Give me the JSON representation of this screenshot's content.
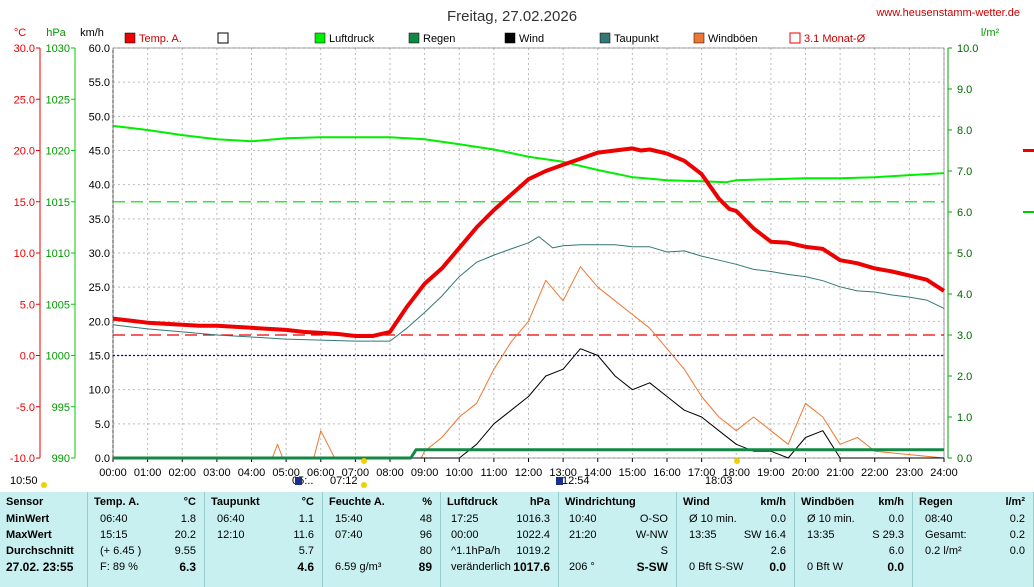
{
  "header": {
    "title": "Freitag, 27.02.2026",
    "website": "www.heusenstamm-wetter.de"
  },
  "units": {
    "temp": "°C",
    "pressure": "hPa",
    "wind": "km/h",
    "rain": "l/m²"
  },
  "legend": [
    {
      "label": "Temp. A.",
      "color": "#ee0000",
      "style": "fill"
    },
    {
      "label": "",
      "color": "#ffffff",
      "style": "box"
    },
    {
      "label": "Luftdruck",
      "color": "#00ee00",
      "style": "fill"
    },
    {
      "label": "Regen",
      "color": "#118844",
      "style": "fill"
    },
    {
      "label": "Wind",
      "color": "#000000",
      "style": "fill"
    },
    {
      "label": "Taupunkt",
      "color": "#337777",
      "style": "fill"
    },
    {
      "label": "Windböen",
      "color": "#ee7733",
      "style": "fill"
    },
    {
      "label": "3.1 Monat-Ø",
      "color": "#ee0000",
      "style": "outline"
    }
  ],
  "axes": {
    "temp_ticks": [
      "30.0",
      "25.0",
      "20.0",
      "15.0",
      "10.0",
      "5.0",
      "0.0",
      "-5.0",
      "-10.0"
    ],
    "pressure_ticks": [
      "1030",
      "1025",
      "1020",
      "1015",
      "1010",
      "1005",
      "1000",
      "995",
      "990"
    ],
    "wind_ticks": [
      "60.0",
      "55.0",
      "50.0",
      "45.0",
      "40.0",
      "35.0",
      "30.0",
      "25.0",
      "20.0",
      "15.0",
      "10.0",
      "5.0",
      "0.0"
    ],
    "rain_ticks": [
      "10.0",
      "9.0",
      "8.0",
      "7.0",
      "6.0",
      "5.0",
      "4.0",
      "3.0",
      "2.0",
      "1.0",
      "0.0"
    ],
    "time_ticks": [
      "00:00",
      "01:00",
      "02:00",
      "03:00",
      "04:00",
      "05:00",
      "06:00",
      "07:00",
      "08:00",
      "09:00",
      "10:00",
      "11:00",
      "12:00",
      "13:00",
      "14:00",
      "15:00",
      "16:00",
      "17:00",
      "18:00",
      "19:00",
      "20:00",
      "21:00",
      "22:00",
      "23:00",
      "24:00"
    ]
  },
  "sun_markers": [
    "10:50",
    "05:..",
    "07:12",
    "12:54",
    "18:03"
  ],
  "chart_data": {
    "type": "line",
    "x_unit": "hour of day",
    "reference_lines": [
      {
        "name": "3.1 Monat-Ø",
        "axis": "temp",
        "value": 2.0,
        "color": "#ee0000",
        "dash": "long"
      },
      {
        "axis": "pressure",
        "value": 1015,
        "color": "#00ee00",
        "dash": "long"
      },
      {
        "axis": "temp",
        "value": 0.0,
        "color": "#0000cc",
        "dash": "dot"
      }
    ],
    "series": [
      {
        "name": "Temp. A.",
        "axis": "temp",
        "color": "#ee0000",
        "x": [
          0,
          0.5,
          1,
          1.5,
          2,
          2.5,
          3,
          3.5,
          4,
          4.5,
          5,
          5.5,
          6,
          6.5,
          7,
          7.5,
          8,
          8.5,
          9,
          9.5,
          10,
          10.5,
          11,
          11.5,
          12,
          12.5,
          13,
          13.5,
          14,
          14.5,
          15,
          15.25,
          15.5,
          16,
          16.5,
          17,
          17.5,
          17.8,
          18,
          18.5,
          19,
          19.5,
          20,
          20.5,
          21,
          21.5,
          22,
          22.5,
          23,
          23.5,
          24
        ],
        "y": [
          3.6,
          3.4,
          3.2,
          3.1,
          3.0,
          2.9,
          2.9,
          2.8,
          2.7,
          2.6,
          2.5,
          2.3,
          2.2,
          2.1,
          1.9,
          1.9,
          2.3,
          4.8,
          7.0,
          8.5,
          10.5,
          12.5,
          14.2,
          15.7,
          17.2,
          18.0,
          18.6,
          19.2,
          19.8,
          20.0,
          20.2,
          20.0,
          20.1,
          19.7,
          19.0,
          17.7,
          15.3,
          14.3,
          14.1,
          12.4,
          11.1,
          11.0,
          10.6,
          10.4,
          9.3,
          9.0,
          8.5,
          8.2,
          7.8,
          7.4,
          6.3
        ]
      },
      {
        "name": "Taupunkt",
        "axis": "temp",
        "color": "#337777",
        "x": [
          0,
          1,
          2,
          3,
          4,
          5,
          6,
          7,
          8,
          8.5,
          9,
          9.5,
          10,
          10.5,
          11,
          11.5,
          12,
          12.3,
          12.7,
          13,
          13.5,
          14,
          14.5,
          15,
          15.5,
          16,
          16.5,
          17,
          17.5,
          18,
          18.5,
          19,
          19.5,
          20,
          20.5,
          21,
          21.5,
          22,
          22.5,
          23,
          23.5,
          24
        ],
        "y": [
          3.0,
          2.6,
          2.3,
          2.0,
          1.8,
          1.6,
          1.5,
          1.4,
          1.4,
          2.7,
          4.2,
          5.8,
          7.7,
          9.1,
          9.8,
          10.4,
          11.0,
          11.6,
          10.5,
          10.7,
          10.8,
          10.8,
          10.8,
          10.6,
          10.6,
          10.1,
          10.2,
          9.7,
          9.3,
          8.9,
          8.4,
          8.2,
          7.9,
          7.7,
          7.3,
          6.7,
          6.3,
          6.2,
          5.9,
          5.7,
          5.4,
          4.6
        ]
      },
      {
        "name": "Luftdruck",
        "axis": "pressure",
        "color": "#00ee00",
        "x": [
          0,
          1,
          2,
          3,
          4,
          5,
          6,
          7,
          8,
          9,
          10,
          11,
          12,
          13,
          14,
          15,
          16,
          17,
          17.7,
          18,
          19,
          20,
          21,
          22,
          23,
          24
        ],
        "y": [
          1022.4,
          1022.0,
          1021.5,
          1021.1,
          1020.9,
          1021.2,
          1021.3,
          1021.3,
          1021.3,
          1021.1,
          1020.6,
          1020.1,
          1019.4,
          1018.9,
          1018.1,
          1017.4,
          1017.1,
          1017.0,
          1016.9,
          1017.1,
          1017.2,
          1017.3,
          1017.3,
          1017.4,
          1017.6,
          1017.8
        ]
      },
      {
        "name": "Wind",
        "axis": "wind",
        "color": "#000000",
        "x": [
          0,
          10,
          10.5,
          11,
          11.5,
          12,
          12.5,
          13,
          13.5,
          14,
          14.5,
          15,
          15.5,
          16,
          16.5,
          17,
          17.5,
          18,
          18.5,
          19,
          19.5,
          20,
          20.5,
          21,
          21.5,
          24
        ],
        "y": [
          0,
          0,
          2,
          5,
          7,
          9,
          12,
          13,
          16,
          15,
          12,
          10,
          11,
          9,
          7,
          6,
          4,
          2,
          1,
          1,
          0,
          3,
          4,
          0,
          0,
          0
        ]
      },
      {
        "name": "Windböen",
        "axis": "wind",
        "color": "#ee7733",
        "x": [
          0,
          4.6,
          4.75,
          4.9,
          5.8,
          6.0,
          6.2,
          6.4,
          8.9,
          9,
          9.5,
          10,
          10.5,
          11,
          11.5,
          12,
          12.5,
          13,
          13.5,
          14,
          14.5,
          15,
          15.5,
          16,
          16.5,
          17,
          17.5,
          18,
          18.5,
          19,
          19.5,
          20,
          20.5,
          21,
          21.5,
          22,
          24
        ],
        "y": [
          0,
          0,
          2,
          0,
          0,
          4,
          2,
          0,
          0,
          1,
          3,
          6,
          8,
          13,
          17,
          20,
          26,
          23,
          28,
          25,
          23,
          21,
          19,
          16,
          13,
          9,
          6,
          4,
          6,
          4,
          2,
          8,
          6,
          2,
          3,
          1,
          0
        ]
      },
      {
        "name": "Regen",
        "axis": "rain",
        "color": "#118844",
        "x": [
          0,
          8.6,
          8.75,
          24
        ],
        "y": [
          0,
          0,
          0.2,
          0.2
        ]
      }
    ]
  },
  "table": {
    "row_labels": [
      "Sensor",
      "MinWert",
      "MaxWert",
      "Durchschnitt",
      "27.02. 23:55"
    ],
    "columns": [
      {
        "title": "Temp. A.",
        "unit": "°C",
        "rows": [
          [
            "06:40",
            "1.8"
          ],
          [
            "15:15",
            "20.2"
          ],
          [
            "(+ 6.45 )",
            "9.55"
          ],
          [
            "F: 89 %",
            "6.3"
          ]
        ]
      },
      {
        "title": "Taupunkt",
        "unit": "°C",
        "rows": [
          [
            "06:40",
            "1.1"
          ],
          [
            "12:10",
            "11.6"
          ],
          [
            "",
            "5.7"
          ],
          [
            "",
            "4.6"
          ]
        ]
      },
      {
        "title": "Feuchte A.",
        "unit": "%",
        "rows": [
          [
            "15:40",
            "48"
          ],
          [
            "07:40",
            "96"
          ],
          [
            "",
            "80"
          ],
          [
            "6.59 g/m³",
            "89"
          ]
        ]
      },
      {
        "title": "Luftdruck",
        "unit": "hPa",
        "rows": [
          [
            "17:25",
            "1016.3"
          ],
          [
            "00:00",
            "1022.4"
          ],
          [
            "^1.1hPa/h",
            "1019.2"
          ],
          [
            "veränderlich",
            "1017.6"
          ]
        ]
      },
      {
        "title": "Windrichtung",
        "unit": "",
        "rows": [
          [
            "10:40",
            "O-SO"
          ],
          [
            "21:20",
            "W-NW"
          ],
          [
            "",
            "S"
          ],
          [
            "206 °",
            "S-SW"
          ]
        ]
      },
      {
        "title": "Wind",
        "unit": "km/h",
        "rows": [
          [
            "Ø 10 min.",
            "0.0"
          ],
          [
            "13:35",
            "SW 16.4"
          ],
          [
            "",
            "2.6"
          ],
          [
            "0 Bft S-SW",
            "0.0"
          ]
        ]
      },
      {
        "title": "Windböen",
        "unit": "km/h",
        "rows": [
          [
            "Ø 10 min.",
            "0.0"
          ],
          [
            "13:35",
            "S 29.3"
          ],
          [
            "",
            "6.0"
          ],
          [
            "0 Bft W",
            "0.0"
          ]
        ]
      },
      {
        "title": "Regen",
        "unit": "l/m²",
        "rows": [
          [
            "08:40",
            "0.2"
          ],
          [
            "Gesamt:",
            "0.2"
          ],
          [
            "0.2 l/m²",
            "0.0"
          ]
        ]
      }
    ]
  }
}
